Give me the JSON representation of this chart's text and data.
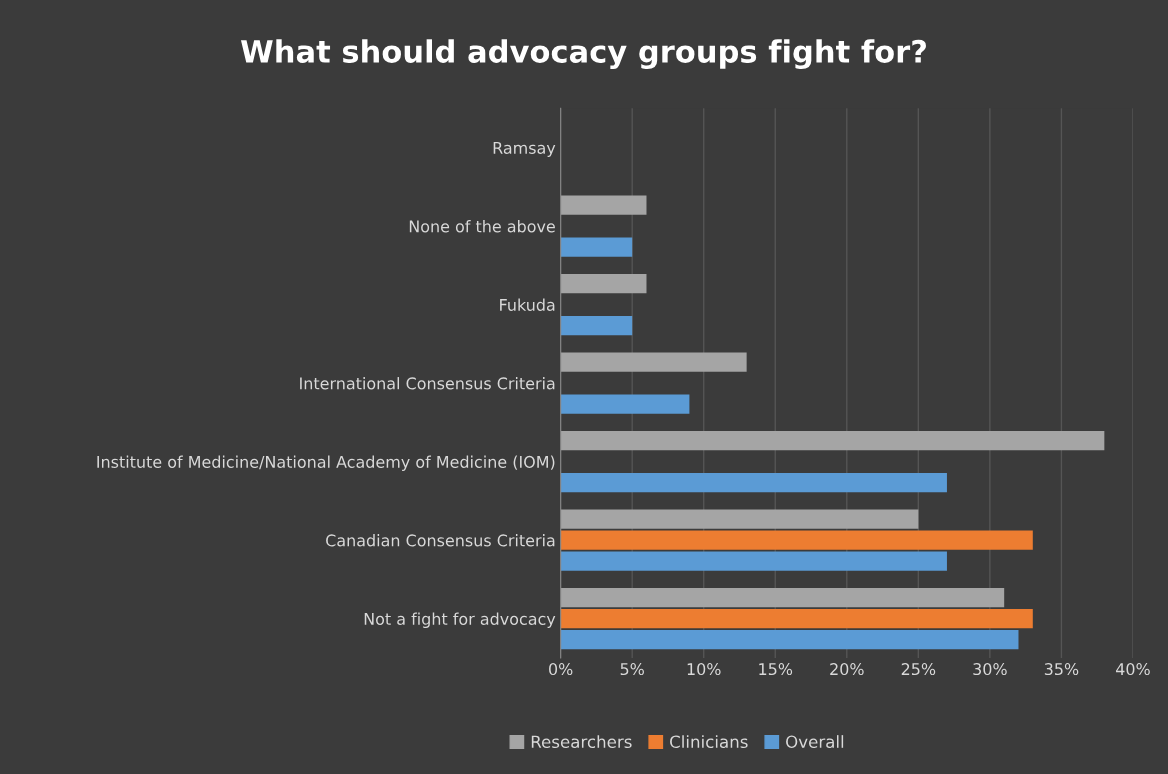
{
  "chart_data": {
    "type": "bar",
    "orientation": "horizontal",
    "title": "What should advocacy groups fight for?",
    "categories": [
      "Ramsay",
      "None of the above",
      "Fukuda",
      "International Consensus Criteria",
      "Institute of Medicine/National Academy of Medicine (IOM)",
      "Canadian Consensus Criteria",
      "Not a fight for advocacy"
    ],
    "series": [
      {
        "name": "Researchers",
        "color": "#a5a5a5",
        "values": [
          0,
          6,
          6,
          13,
          38,
          25,
          31
        ]
      },
      {
        "name": "Clinicians",
        "color": "#ed7d31",
        "values": [
          0,
          0,
          0,
          0,
          0,
          33,
          33
        ]
      },
      {
        "name": "Overall",
        "color": "#5b9bd5",
        "values": [
          0,
          5,
          5,
          9,
          27,
          27,
          32
        ]
      }
    ],
    "xlim": [
      0,
      40
    ],
    "xticks": [
      {
        "value": 0,
        "label": "0%"
      },
      {
        "value": 5,
        "label": "5%"
      },
      {
        "value": 10,
        "label": "10%"
      },
      {
        "value": 15,
        "label": "15%"
      },
      {
        "value": 20,
        "label": "20%"
      },
      {
        "value": 25,
        "label": "25%"
      },
      {
        "value": 30,
        "label": "30%"
      },
      {
        "value": 35,
        "label": "35%"
      },
      {
        "value": 40,
        "label": "40%"
      }
    ],
    "grid": "x",
    "legend": "bottom"
  }
}
